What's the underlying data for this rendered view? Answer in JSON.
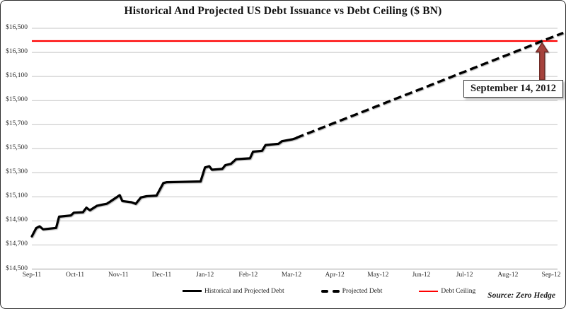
{
  "chart_data": {
    "type": "line",
    "title": "Historical And Projected US Debt Issuance vs Debt Ceiling ($ BN)",
    "xlabel": "",
    "ylabel": "",
    "ylim": [
      14500,
      16500
    ],
    "x_ticks": [
      "Sep-11",
      "Oct-11",
      "Nov-11",
      "Dec-11",
      "Jan-12",
      "Feb-12",
      "Mar-12",
      "Apr-12",
      "May-12",
      "Jun-12",
      "Jul-12",
      "Aug-12",
      "Sep-12"
    ],
    "y_ticks": [
      {
        "label": "$14,500",
        "value": 14500
      },
      {
        "label": "$14,700",
        "value": 14700
      },
      {
        "label": "$14,900",
        "value": 14900
      },
      {
        "label": "$15,100",
        "value": 15100
      },
      {
        "label": "$15,300",
        "value": 15300
      },
      {
        "label": "$15,500",
        "value": 15500
      },
      {
        "label": "$15,700",
        "value": 15700
      },
      {
        "label": "$15,900",
        "value": 15900
      },
      {
        "label": "$16,100",
        "value": 16100
      },
      {
        "label": "$16,300",
        "value": 16300
      },
      {
        "label": "$16,500",
        "value": 16500
      }
    ],
    "grid": "horizontal",
    "legend_position": "bottom",
    "series": [
      {
        "name": "Historical and Projected Debt",
        "style": "solid",
        "points": [
          [
            0.0,
            14772
          ],
          [
            0.1,
            14840
          ],
          [
            0.18,
            14855
          ],
          [
            0.26,
            14830
          ],
          [
            0.56,
            14842
          ],
          [
            0.63,
            14935
          ],
          [
            0.9,
            14945
          ],
          [
            0.97,
            14968
          ],
          [
            1.18,
            14972
          ],
          [
            1.26,
            15010
          ],
          [
            1.34,
            14988
          ],
          [
            1.5,
            15025
          ],
          [
            1.62,
            15035
          ],
          [
            1.73,
            15042
          ],
          [
            1.8,
            15058
          ],
          [
            2.03,
            15114
          ],
          [
            2.09,
            15065
          ],
          [
            2.3,
            15055
          ],
          [
            2.4,
            15042
          ],
          [
            2.52,
            15095
          ],
          [
            2.65,
            15105
          ],
          [
            2.88,
            15110
          ],
          [
            3.04,
            15215
          ],
          [
            3.12,
            15222
          ],
          [
            3.9,
            15228
          ],
          [
            4.0,
            15344
          ],
          [
            4.1,
            15354
          ],
          [
            4.16,
            15325
          ],
          [
            4.4,
            15332
          ],
          [
            4.47,
            15363
          ],
          [
            4.6,
            15374
          ],
          [
            4.72,
            15413
          ],
          [
            5.04,
            15420
          ],
          [
            5.11,
            15475
          ],
          [
            5.32,
            15482
          ],
          [
            5.4,
            15530
          ],
          [
            5.7,
            15540
          ],
          [
            5.78,
            15562
          ],
          [
            6.02,
            15578
          ],
          [
            6.11,
            15588
          ]
        ]
      },
      {
        "name": "Projected Debt",
        "style": "dashed",
        "points": [
          [
            6.11,
            15590
          ],
          [
            6.5,
            15645
          ],
          [
            7.0,
            15716
          ],
          [
            7.5,
            15786
          ],
          [
            8.0,
            15857
          ],
          [
            8.5,
            15928
          ],
          [
            9.0,
            15998
          ],
          [
            9.5,
            16069
          ],
          [
            10.0,
            16140
          ],
          [
            10.5,
            16211
          ],
          [
            11.0,
            16281
          ],
          [
            11.5,
            16352
          ],
          [
            11.79,
            16394
          ],
          [
            12.28,
            16462
          ]
        ]
      },
      {
        "name": "Debt Ceiling",
        "style": "solid-red",
        "value": 16394
      }
    ],
    "annotation": {
      "label": "September 14, 2012",
      "target_month": 11.79,
      "target_value": 16394
    }
  },
  "source": {
    "text": "Source: Zero Hedge"
  },
  "colors": {
    "ceiling_red": "#fe0000",
    "line_black": "#000000",
    "grid": "#c4c4c4",
    "axis_line": "#9b9b9b",
    "arrow_fill": "#a5423c",
    "arrow_stroke": "#6f2b26"
  }
}
